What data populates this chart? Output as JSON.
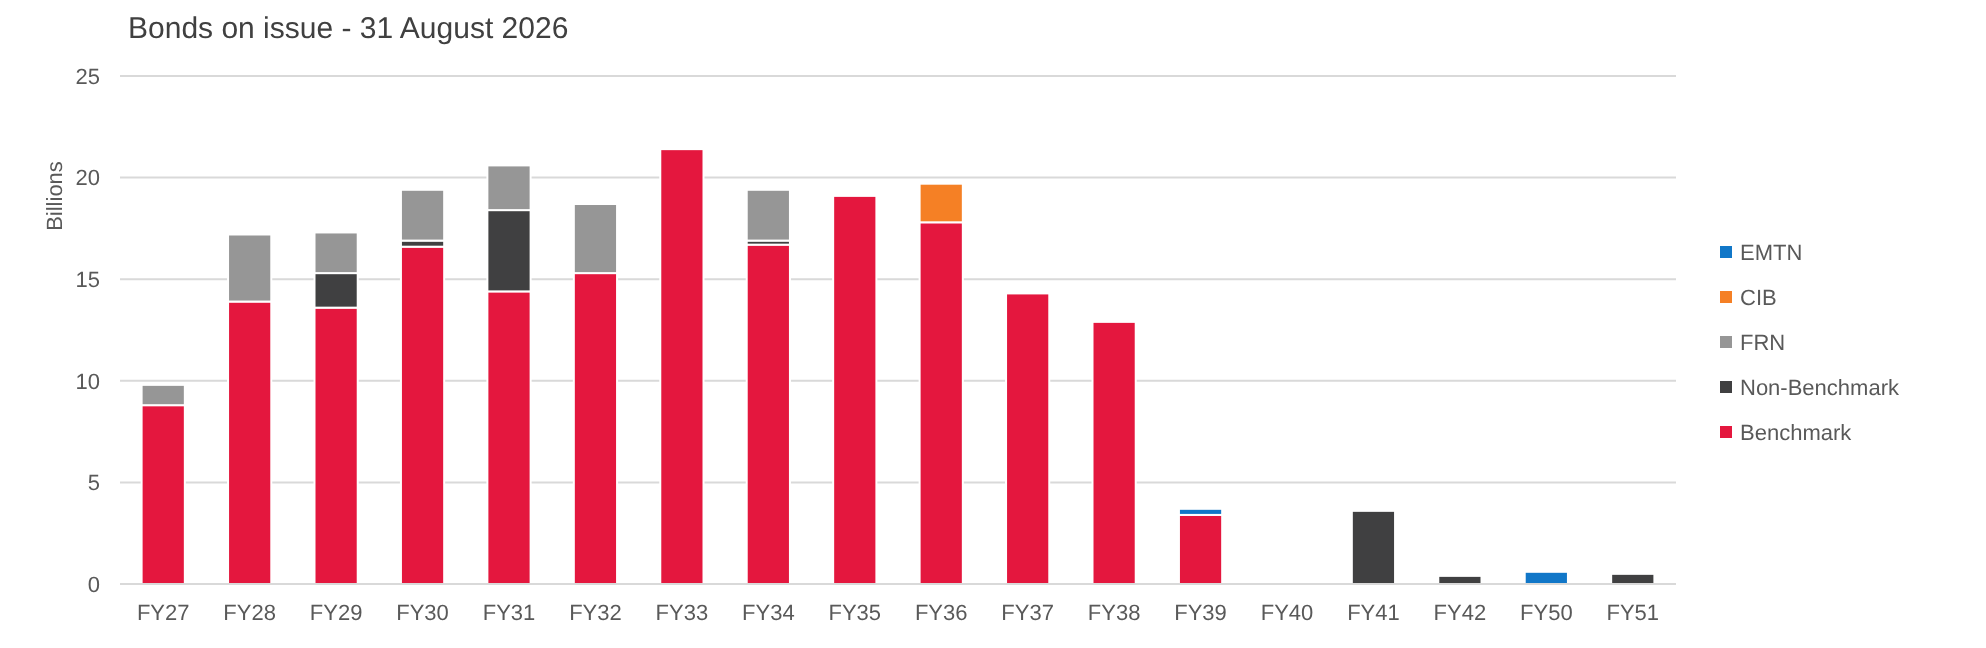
{
  "chart_data": {
    "type": "bar",
    "title": "Bonds on issue - 31 August 2026",
    "ylabel": "Billions",
    "stacked": true,
    "categories": [
      "FY27",
      "FY28",
      "FY29",
      "FY30",
      "FY31",
      "FY32",
      "FY33",
      "FY34",
      "FY35",
      "FY36",
      "FY37",
      "FY38",
      "FY39",
      "FY40",
      "FY41",
      "FY42",
      "FY50",
      "FY51"
    ],
    "series": [
      {
        "name": "Benchmark",
        "color": "#e4173e",
        "values": [
          8.8,
          13.9,
          13.6,
          16.6,
          14.4,
          15.3,
          21.4,
          16.7,
          19.1,
          17.8,
          14.3,
          12.9,
          3.4,
          0,
          0,
          0,
          0,
          0
        ]
      },
      {
        "name": "Non-Benchmark",
        "color": "#404041",
        "values": [
          0,
          0,
          1.7,
          0.3,
          4.0,
          0,
          0,
          0.2,
          0,
          0,
          0,
          0,
          0,
          0,
          3.6,
          0.4,
          0,
          0.5
        ]
      },
      {
        "name": "FRN",
        "color": "#969696",
        "values": [
          1.0,
          3.3,
          2.0,
          2.5,
          2.2,
          3.4,
          0,
          2.5,
          0,
          0,
          0,
          0,
          0,
          0,
          0,
          0,
          0,
          0
        ]
      },
      {
        "name": "CIB",
        "color": "#f58025",
        "values": [
          0,
          0,
          0,
          0,
          0,
          0,
          0,
          0,
          0,
          1.9,
          0,
          0,
          0,
          0,
          0,
          0,
          0,
          0
        ]
      },
      {
        "name": "EMTN",
        "color": "#1177c8",
        "values": [
          0,
          0,
          0,
          0,
          0,
          0,
          0,
          0,
          0,
          0,
          0,
          0,
          0.3,
          0,
          0,
          0,
          0.6,
          0
        ]
      }
    ],
    "ylim": [
      0,
      25
    ],
    "yticks": [
      0,
      5,
      10,
      15,
      20,
      25
    ],
    "grid": "y",
    "legend": "right"
  }
}
